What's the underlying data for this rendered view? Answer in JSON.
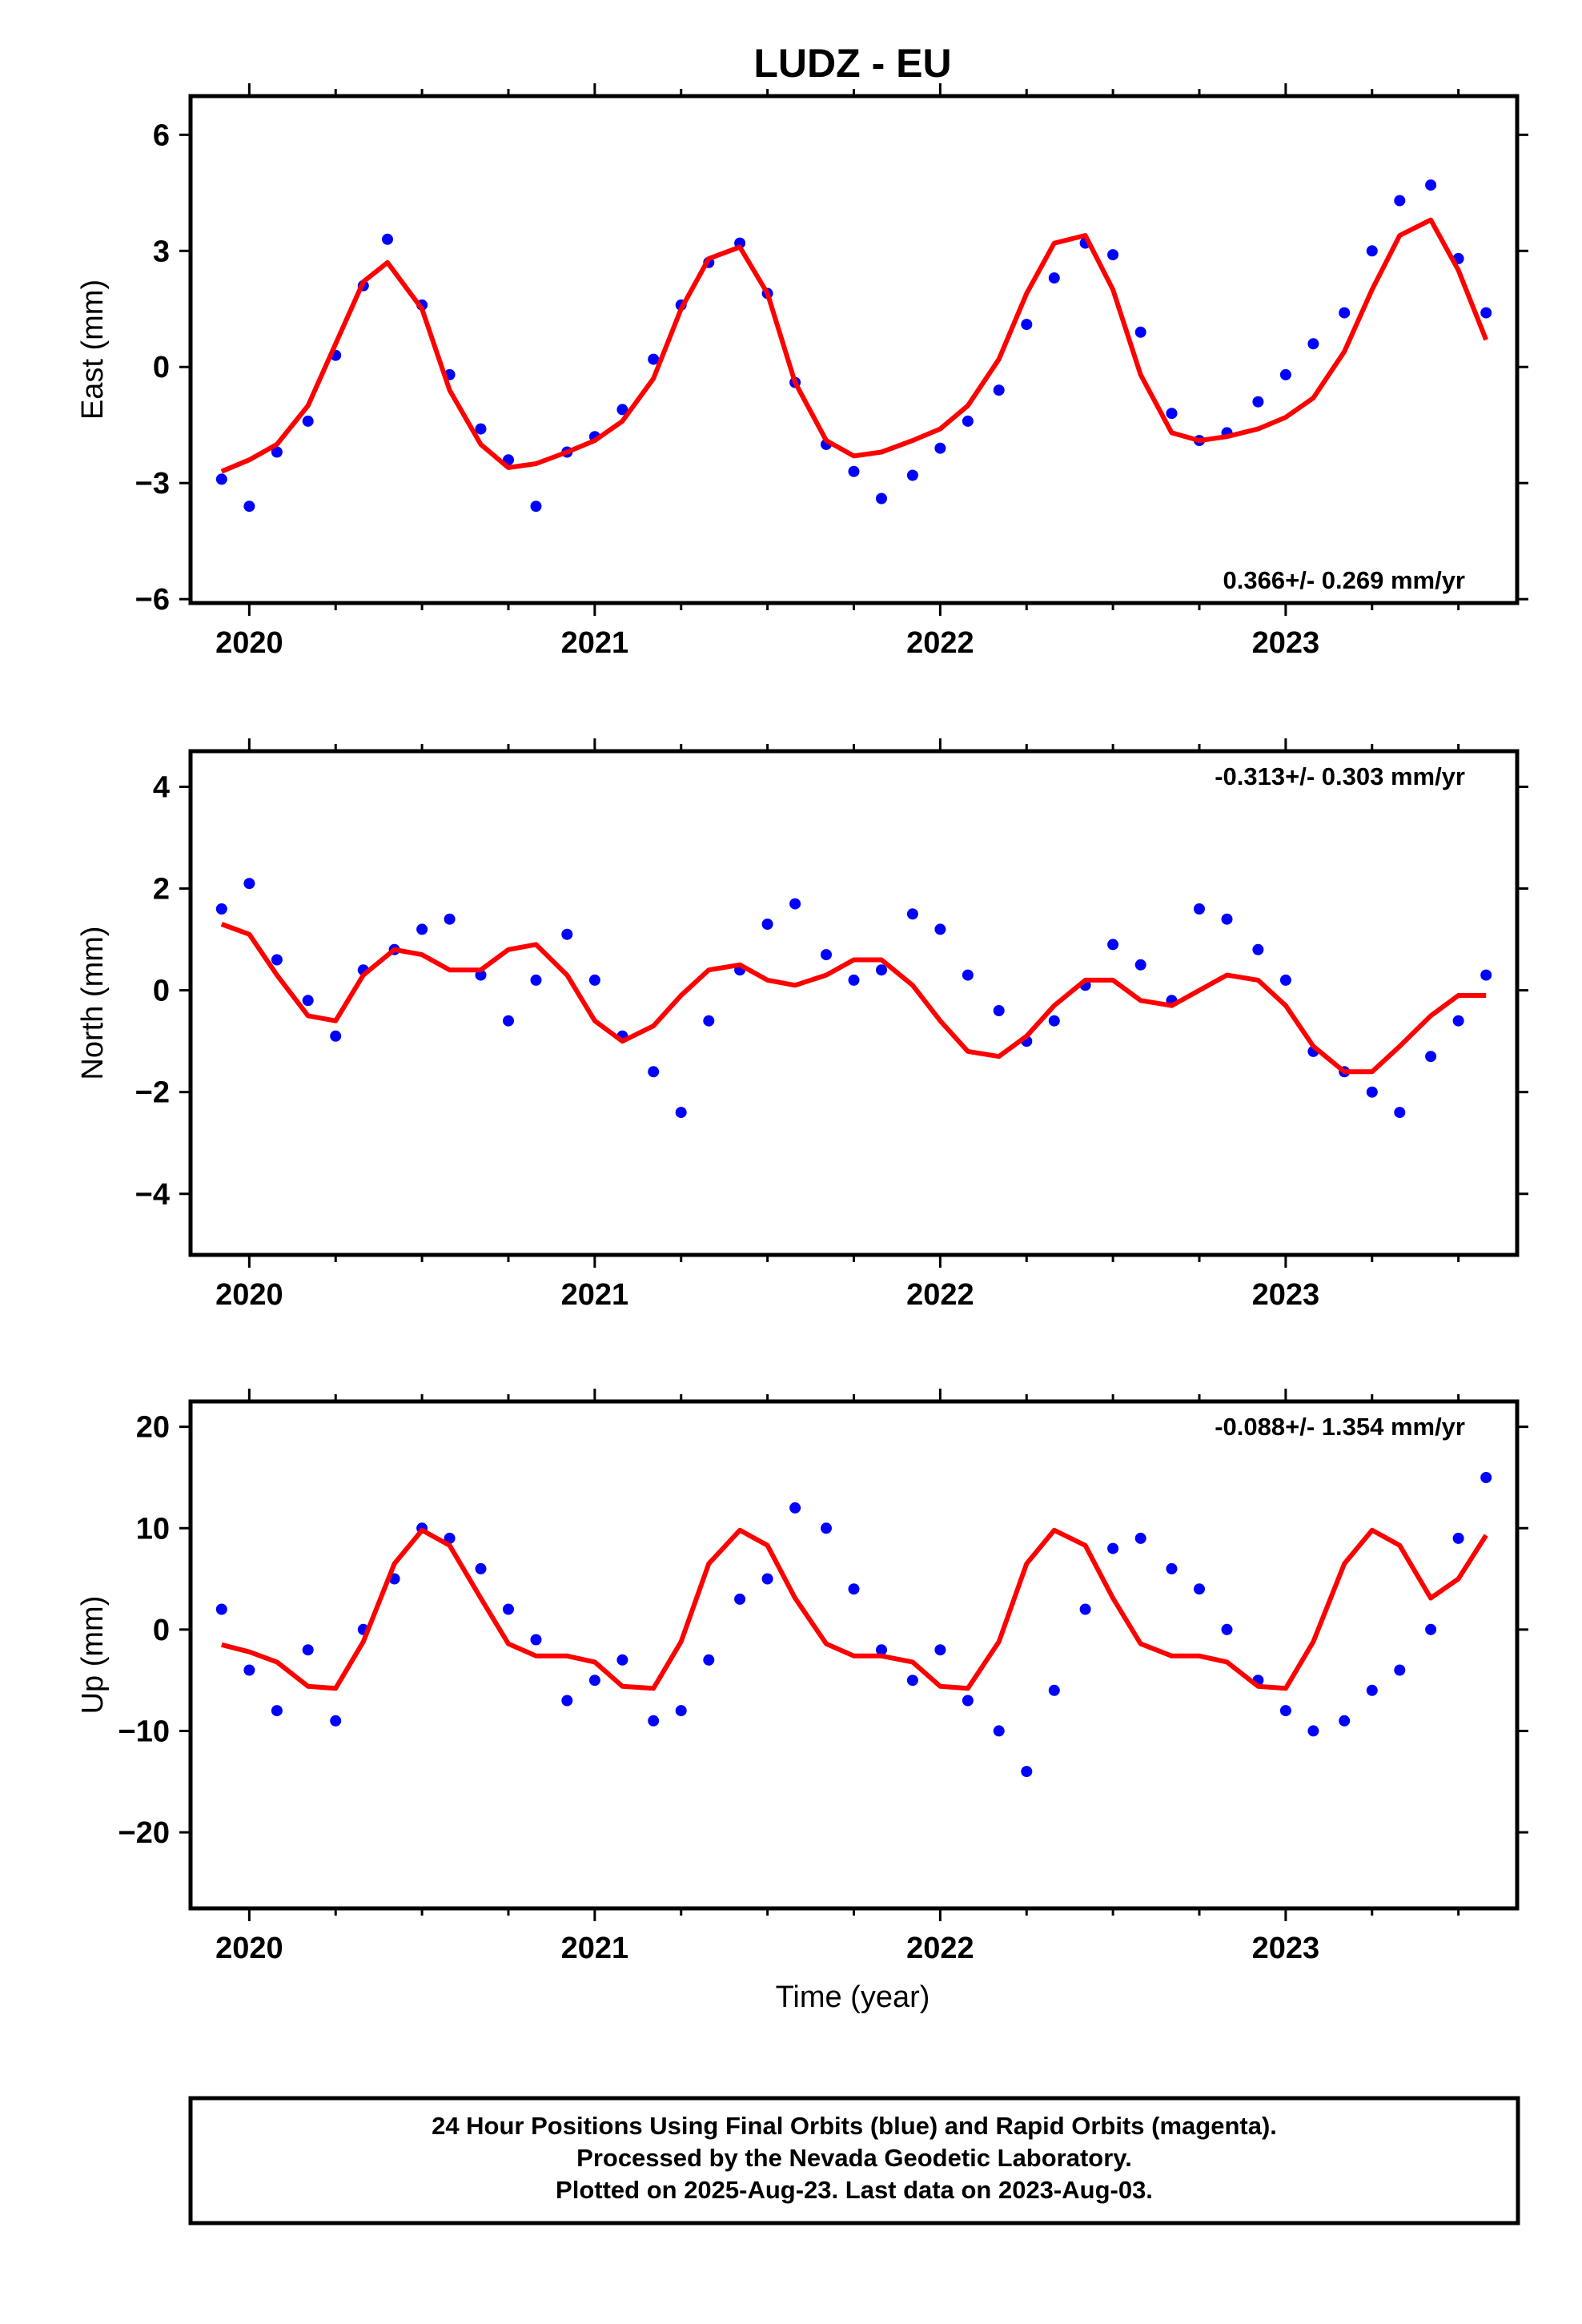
{
  "title": "LUDZ - EU",
  "xlabel": "Time (year)",
  "footer": [
    "24 Hour Positions Using Final Orbits (blue) and Rapid Orbits (magenta).",
    "Processed by the Nevada Geodetic Laboratory.",
    "Plotted on 2025-Aug-23. Last data on 2023-Aug-03."
  ],
  "colors": {
    "data": "#0000ff",
    "fit": "#ff0000",
    "frame": "#000000"
  },
  "chart_data": [
    {
      "type": "scatter",
      "name": "east",
      "ylabel": "East (mm)",
      "rate_label": "0.366+/- 0.269 mm/yr",
      "rate_placement": "bottom-right",
      "xlim": [
        2019.83,
        2023.67
      ],
      "ylim": [
        -6.1,
        7.0
      ],
      "yticks": [
        -6,
        -3,
        0,
        3,
        6
      ],
      "ytick_labels": [
        "−6",
        "−3",
        "0",
        "3",
        "6"
      ],
      "xticks": [
        2020,
        2021,
        2022,
        2023
      ],
      "xtick_labels": [
        "2020",
        "2021",
        "2022",
        "2023"
      ],
      "series": [
        {
          "kind": "points",
          "x": [
            2019.92,
            2020.0,
            2020.08,
            2020.17,
            2020.25,
            2020.33,
            2020.4,
            2020.5,
            2020.58,
            2020.67,
            2020.75,
            2020.83,
            2020.92,
            2021.0,
            2021.08,
            2021.17,
            2021.25,
            2021.33,
            2021.42,
            2021.5,
            2021.58,
            2021.67,
            2021.75,
            2021.83,
            2021.92,
            2022.0,
            2022.08,
            2022.17,
            2022.25,
            2022.33,
            2022.42,
            2022.5,
            2022.58,
            2022.67,
            2022.75,
            2022.83,
            2022.92,
            2023.0,
            2023.08,
            2023.17,
            2023.25,
            2023.33,
            2023.42,
            2023.5,
            2023.58
          ],
          "y": [
            -2.9,
            -3.6,
            -2.2,
            -1.4,
            0.3,
            2.1,
            3.3,
            1.6,
            -0.2,
            -1.6,
            -2.4,
            -3.6,
            -2.2,
            -1.8,
            -1.1,
            0.2,
            1.6,
            2.7,
            3.2,
            1.9,
            -0.4,
            -2.0,
            -2.7,
            -3.4,
            -2.8,
            -2.1,
            -1.4,
            -0.6,
            1.1,
            2.3,
            3.2,
            2.9,
            0.9,
            -1.2,
            -1.9,
            -1.7,
            -0.9,
            -0.2,
            0.6,
            1.4,
            3.0,
            4.3,
            4.7,
            2.8,
            1.4
          ]
        },
        {
          "kind": "fit",
          "x": [
            2019.92,
            2020.0,
            2020.08,
            2020.17,
            2020.25,
            2020.33,
            2020.4,
            2020.5,
            2020.58,
            2020.67,
            2020.75,
            2020.83,
            2020.92,
            2021.0,
            2021.08,
            2021.17,
            2021.25,
            2021.33,
            2021.42,
            2021.5,
            2021.58,
            2021.67,
            2021.75,
            2021.83,
            2021.92,
            2022.0,
            2022.08,
            2022.17,
            2022.25,
            2022.33,
            2022.42,
            2022.5,
            2022.58,
            2022.67,
            2022.75,
            2022.83,
            2022.92,
            2023.0,
            2023.08,
            2023.17,
            2023.25,
            2023.33,
            2023.42,
            2023.5,
            2023.58
          ],
          "y": [
            -2.7,
            -2.4,
            -2.0,
            -1.0,
            0.6,
            2.2,
            2.7,
            1.5,
            -0.6,
            -2.0,
            -2.6,
            -2.5,
            -2.2,
            -1.9,
            -1.4,
            -0.3,
            1.5,
            2.8,
            3.1,
            1.9,
            -0.4,
            -1.9,
            -2.3,
            -2.2,
            -1.9,
            -1.6,
            -1.0,
            0.2,
            1.9,
            3.2,
            3.4,
            2.0,
            -0.2,
            -1.7,
            -1.9,
            -1.8,
            -1.6,
            -1.3,
            -0.8,
            0.4,
            2.0,
            3.4,
            3.8,
            2.5,
            0.7
          ]
        }
      ]
    },
    {
      "type": "scatter",
      "name": "north",
      "ylabel": "North (mm)",
      "rate_label": "-0.313+/- 0.303 mm/yr",
      "rate_placement": "top-right",
      "xlim": [
        2019.83,
        2023.67
      ],
      "ylim": [
        -5.2,
        4.7
      ],
      "yticks": [
        -4,
        -2,
        0,
        2,
        4
      ],
      "ytick_labels": [
        "−4",
        "−2",
        "0",
        "2",
        "4"
      ],
      "xticks": [
        2020,
        2021,
        2022,
        2023
      ],
      "xtick_labels": [
        "2020",
        "2021",
        "2022",
        "2023"
      ],
      "series": [
        {
          "kind": "points",
          "x": [
            2019.92,
            2020.0,
            2020.08,
            2020.17,
            2020.25,
            2020.33,
            2020.42,
            2020.5,
            2020.58,
            2020.67,
            2020.75,
            2020.83,
            2020.92,
            2021.0,
            2021.08,
            2021.17,
            2021.25,
            2021.33,
            2021.42,
            2021.5,
            2021.58,
            2021.67,
            2021.75,
            2021.83,
            2021.92,
            2022.0,
            2022.08,
            2022.17,
            2022.25,
            2022.33,
            2022.42,
            2022.5,
            2022.58,
            2022.67,
            2022.75,
            2022.83,
            2022.92,
            2023.0,
            2023.08,
            2023.17,
            2023.25,
            2023.33,
            2023.42,
            2023.5,
            2023.58
          ],
          "y": [
            1.6,
            2.1,
            0.6,
            -0.2,
            -0.9,
            0.4,
            0.8,
            1.2,
            1.4,
            0.3,
            -0.6,
            0.2,
            1.1,
            0.2,
            -0.9,
            -1.6,
            -2.4,
            -0.6,
            0.4,
            1.3,
            1.7,
            0.7,
            0.2,
            0.4,
            1.5,
            1.2,
            0.3,
            -0.4,
            -1.0,
            -0.6,
            0.1,
            0.9,
            0.5,
            -0.2,
            1.6,
            1.4,
            0.8,
            0.2,
            -1.2,
            -1.6,
            -2.0,
            -2.4,
            -1.3,
            -0.6,
            0.3
          ]
        },
        {
          "kind": "fit",
          "x": [
            2019.92,
            2020.0,
            2020.08,
            2020.17,
            2020.25,
            2020.33,
            2020.42,
            2020.5,
            2020.58,
            2020.67,
            2020.75,
            2020.83,
            2020.92,
            2021.0,
            2021.08,
            2021.17,
            2021.25,
            2021.33,
            2021.42,
            2021.5,
            2021.58,
            2021.67,
            2021.75,
            2021.83,
            2021.92,
            2022.0,
            2022.08,
            2022.17,
            2022.25,
            2022.33,
            2022.42,
            2022.5,
            2022.58,
            2022.67,
            2022.75,
            2022.83,
            2022.92,
            2023.0,
            2023.08,
            2023.17,
            2023.25,
            2023.33,
            2023.42,
            2023.5,
            2023.58
          ],
          "y": [
            1.3,
            1.1,
            0.3,
            -0.5,
            -0.6,
            0.3,
            0.8,
            0.7,
            0.4,
            0.4,
            0.8,
            0.9,
            0.3,
            -0.6,
            -1.0,
            -0.7,
            -0.1,
            0.4,
            0.5,
            0.2,
            0.1,
            0.3,
            0.6,
            0.6,
            0.1,
            -0.6,
            -1.2,
            -1.3,
            -0.9,
            -0.3,
            0.2,
            0.2,
            -0.2,
            -0.3,
            0.0,
            0.3,
            0.2,
            -0.3,
            -1.1,
            -1.6,
            -1.6,
            -1.1,
            -0.5,
            -0.1,
            -0.1
          ]
        }
      ]
    },
    {
      "type": "scatter",
      "name": "up",
      "ylabel": "Up (mm)",
      "rate_label": "-0.088+/- 1.354 mm/yr",
      "rate_placement": "top-right",
      "xlim": [
        2019.83,
        2023.67
      ],
      "ylim": [
        -27.5,
        22.5
      ],
      "yticks": [
        -20,
        -10,
        0,
        10,
        20
      ],
      "ytick_labels": [
        "−20",
        "−10",
        "0",
        "10",
        "20"
      ],
      "xticks": [
        2020,
        2021,
        2022,
        2023
      ],
      "xtick_labels": [
        "2020",
        "2021",
        "2022",
        "2023"
      ],
      "series": [
        {
          "kind": "points",
          "x": [
            2019.92,
            2020.0,
            2020.08,
            2020.17,
            2020.25,
            2020.33,
            2020.42,
            2020.5,
            2020.58,
            2020.67,
            2020.75,
            2020.83,
            2020.92,
            2021.0,
            2021.08,
            2021.17,
            2021.25,
            2021.33,
            2021.42,
            2021.5,
            2021.58,
            2021.67,
            2021.75,
            2021.83,
            2021.92,
            2022.0,
            2022.08,
            2022.17,
            2022.25,
            2022.33,
            2022.42,
            2022.5,
            2022.58,
            2022.67,
            2022.75,
            2022.83,
            2022.92,
            2023.0,
            2023.08,
            2023.17,
            2023.25,
            2023.33,
            2023.42,
            2023.5,
            2023.58
          ],
          "y": [
            2.0,
            -4.0,
            -8.0,
            -2.0,
            -9.0,
            0.0,
            5.0,
            10.0,
            9.0,
            6.0,
            2.0,
            -1.0,
            -7.0,
            -5.0,
            -3.0,
            -9.0,
            -8.0,
            -3.0,
            3.0,
            5.0,
            12.0,
            10.0,
            4.0,
            -2.0,
            -5.0,
            -2.0,
            -7.0,
            -10.0,
            -14.0,
            -6.0,
            2.0,
            8.0,
            9.0,
            6.0,
            4.0,
            0.0,
            -5.0,
            -8.0,
            -10.0,
            -9.0,
            -6.0,
            -4.0,
            0.0,
            9.0,
            15.0
          ]
        },
        {
          "kind": "fit",
          "x": [
            2019.92,
            2020.0,
            2020.08,
            2020.17,
            2020.25,
            2020.33,
            2020.42,
            2020.5,
            2020.58,
            2020.67,
            2020.75,
            2020.83,
            2020.92,
            2021.0,
            2021.08,
            2021.17,
            2021.25,
            2021.33,
            2021.42,
            2021.5,
            2021.58,
            2021.67,
            2021.75,
            2021.83,
            2021.92,
            2022.0,
            2022.08,
            2022.17,
            2022.25,
            2022.33,
            2022.42,
            2022.5,
            2022.58,
            2022.67,
            2022.75,
            2022.83,
            2022.92,
            2023.0,
            2023.08,
            2023.17,
            2023.25,
            2023.33,
            2023.42,
            2023.5,
            2023.58
          ],
          "y": [
            -1.5,
            -2.2,
            -3.2,
            -5.6,
            -5.8,
            -1.2,
            6.5,
            9.8,
            8.3,
            3.1,
            -1.4,
            -2.6,
            -2.6,
            -3.2,
            -5.6,
            -5.8,
            -1.2,
            6.5,
            9.8,
            8.3,
            3.1,
            -1.4,
            -2.6,
            -2.6,
            -3.2,
            -5.6,
            -5.8,
            -1.2,
            6.5,
            9.8,
            8.3,
            3.1,
            -1.4,
            -2.6,
            -2.6,
            -3.2,
            -5.6,
            -5.8,
            -1.2,
            6.5,
            9.8,
            8.3,
            3.1,
            5.0,
            9.3
          ]
        }
      ]
    }
  ]
}
